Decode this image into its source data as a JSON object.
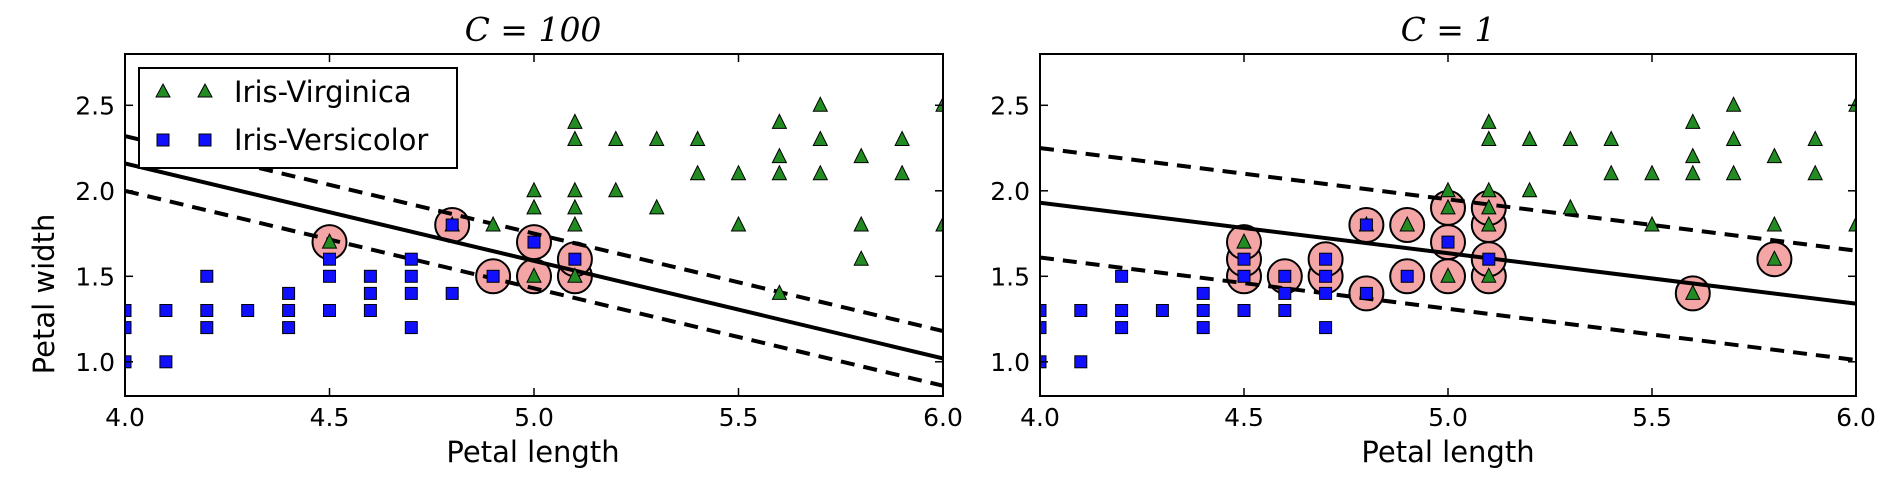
{
  "chart_data": [
    {
      "type": "scatter",
      "title": "C = 100",
      "xlabel": "Petal length",
      "ylabel": "Petal width",
      "xlim": [
        4.0,
        6.0
      ],
      "ylim": [
        0.8,
        2.8
      ],
      "xticks": [
        "4.0",
        "4.5",
        "5.0",
        "5.5",
        "6.0"
      ],
      "yticks": [
        "1.0",
        "1.5",
        "2.0",
        "2.5"
      ],
      "legend": {
        "position": "top-left",
        "entries": [
          {
            "label": "Iris-Virginica",
            "marker": "triangle",
            "color": "#228b22"
          },
          {
            "label": "Iris-Versicolor",
            "marker": "square",
            "color": "#1010ff"
          }
        ]
      },
      "series": [
        {
          "name": "Iris-Virginica",
          "marker": "triangle",
          "color": "#228b22",
          "points": [
            [
              4.5,
              1.7
            ],
            [
              4.8,
              1.8
            ],
            [
              4.9,
              1.8
            ],
            [
              5.0,
              1.5
            ],
            [
              5.0,
              2.0
            ],
            [
              5.0,
              1.9
            ],
            [
              5.1,
              1.8
            ],
            [
              5.1,
              1.9
            ],
            [
              5.1,
              2.0
            ],
            [
              5.1,
              2.3
            ],
            [
              5.1,
              2.4
            ],
            [
              5.1,
              1.5
            ],
            [
              5.2,
              2.0
            ],
            [
              5.2,
              2.3
            ],
            [
              5.3,
              1.9
            ],
            [
              5.3,
              2.3
            ],
            [
              5.4,
              2.1
            ],
            [
              5.4,
              2.3
            ],
            [
              5.5,
              1.8
            ],
            [
              5.5,
              2.1
            ],
            [
              5.6,
              1.4
            ],
            [
              5.6,
              2.1
            ],
            [
              5.6,
              2.2
            ],
            [
              5.6,
              2.4
            ],
            [
              5.7,
              2.1
            ],
            [
              5.7,
              2.3
            ],
            [
              5.7,
              2.5
            ],
            [
              5.8,
              1.6
            ],
            [
              5.8,
              1.8
            ],
            [
              5.8,
              2.2
            ],
            [
              5.9,
              2.1
            ],
            [
              5.9,
              2.3
            ],
            [
              6.0,
              1.8
            ],
            [
              6.0,
              2.5
            ]
          ]
        },
        {
          "name": "Iris-Versicolor",
          "marker": "square",
          "color": "#1010ff",
          "points": [
            [
              4.0,
              1.0
            ],
            [
              4.0,
              1.2
            ],
            [
              4.0,
              1.3
            ],
            [
              4.1,
              1.0
            ],
            [
              4.1,
              1.3
            ],
            [
              4.2,
              1.2
            ],
            [
              4.2,
              1.3
            ],
            [
              4.2,
              1.5
            ],
            [
              4.3,
              1.3
            ],
            [
              4.4,
              1.2
            ],
            [
              4.4,
              1.3
            ],
            [
              4.4,
              1.4
            ],
            [
              4.5,
              1.3
            ],
            [
              4.5,
              1.5
            ],
            [
              4.5,
              1.6
            ],
            [
              4.6,
              1.3
            ],
            [
              4.6,
              1.4
            ],
            [
              4.6,
              1.5
            ],
            [
              4.7,
              1.2
            ],
            [
              4.7,
              1.4
            ],
            [
              4.7,
              1.5
            ],
            [
              4.7,
              1.6
            ],
            [
              4.8,
              1.4
            ],
            [
              4.8,
              1.8
            ],
            [
              4.9,
              1.5
            ],
            [
              5.0,
              1.7
            ],
            [
              5.1,
              1.6
            ]
          ]
        }
      ],
      "support_vectors": [
        [
          4.5,
          1.7
        ],
        [
          4.8,
          1.8
        ],
        [
          4.9,
          1.5
        ],
        [
          5.0,
          1.5
        ],
        [
          5.0,
          1.7
        ],
        [
          5.1,
          1.5
        ],
        [
          5.1,
          1.6
        ]
      ],
      "decision_boundary": [
        [
          4.0,
          2.16
        ],
        [
          6.0,
          1.02
        ]
      ],
      "margin_upper": [
        [
          4.0,
          2.32
        ],
        [
          6.0,
          1.18
        ]
      ],
      "margin_lower": [
        [
          4.0,
          2.0
        ],
        [
          6.0,
          0.86
        ]
      ],
      "grid": false
    },
    {
      "type": "scatter",
      "title": "C = 1",
      "xlabel": "Petal length",
      "ylabel": "",
      "xlim": [
        4.0,
        6.0
      ],
      "ylim": [
        0.8,
        2.8
      ],
      "xticks": [
        "4.0",
        "4.5",
        "5.0",
        "5.5",
        "6.0"
      ],
      "yticks": [
        "1.0",
        "1.5",
        "2.0",
        "2.5"
      ],
      "series": [
        {
          "name": "Iris-Virginica",
          "marker": "triangle",
          "color": "#228b22",
          "points": [
            [
              4.5,
              1.7
            ],
            [
              4.8,
              1.8
            ],
            [
              4.9,
              1.8
            ],
            [
              5.0,
              1.5
            ],
            [
              5.0,
              2.0
            ],
            [
              5.0,
              1.9
            ],
            [
              5.1,
              1.8
            ],
            [
              5.1,
              1.9
            ],
            [
              5.1,
              2.0
            ],
            [
              5.1,
              2.3
            ],
            [
              5.1,
              2.4
            ],
            [
              5.1,
              1.5
            ],
            [
              5.2,
              2.0
            ],
            [
              5.2,
              2.3
            ],
            [
              5.3,
              1.9
            ],
            [
              5.3,
              2.3
            ],
            [
              5.4,
              2.1
            ],
            [
              5.4,
              2.3
            ],
            [
              5.5,
              1.8
            ],
            [
              5.5,
              2.1
            ],
            [
              5.6,
              1.4
            ],
            [
              5.6,
              2.1
            ],
            [
              5.6,
              2.2
            ],
            [
              5.6,
              2.4
            ],
            [
              5.7,
              2.1
            ],
            [
              5.7,
              2.3
            ],
            [
              5.7,
              2.5
            ],
            [
              5.8,
              1.6
            ],
            [
              5.8,
              1.8
            ],
            [
              5.8,
              2.2
            ],
            [
              5.9,
              2.1
            ],
            [
              5.9,
              2.3
            ],
            [
              6.0,
              1.8
            ],
            [
              6.0,
              2.5
            ]
          ]
        },
        {
          "name": "Iris-Versicolor",
          "marker": "square",
          "color": "#1010ff",
          "points": [
            [
              4.0,
              1.0
            ],
            [
              4.0,
              1.2
            ],
            [
              4.0,
              1.3
            ],
            [
              4.1,
              1.0
            ],
            [
              4.1,
              1.3
            ],
            [
              4.2,
              1.2
            ],
            [
              4.2,
              1.3
            ],
            [
              4.2,
              1.5
            ],
            [
              4.3,
              1.3
            ],
            [
              4.4,
              1.2
            ],
            [
              4.4,
              1.3
            ],
            [
              4.4,
              1.4
            ],
            [
              4.5,
              1.3
            ],
            [
              4.5,
              1.5
            ],
            [
              4.5,
              1.6
            ],
            [
              4.6,
              1.3
            ],
            [
              4.6,
              1.4
            ],
            [
              4.6,
              1.5
            ],
            [
              4.7,
              1.2
            ],
            [
              4.7,
              1.4
            ],
            [
              4.7,
              1.5
            ],
            [
              4.7,
              1.6
            ],
            [
              4.8,
              1.4
            ],
            [
              4.8,
              1.8
            ],
            [
              4.9,
              1.5
            ],
            [
              5.0,
              1.7
            ],
            [
              5.1,
              1.6
            ]
          ]
        }
      ],
      "support_vectors": [
        [
          4.5,
          1.5
        ],
        [
          4.5,
          1.6
        ],
        [
          4.5,
          1.7
        ],
        [
          4.6,
          1.5
        ],
        [
          4.7,
          1.5
        ],
        [
          4.7,
          1.6
        ],
        [
          4.8,
          1.4
        ],
        [
          4.8,
          1.8
        ],
        [
          4.9,
          1.5
        ],
        [
          4.9,
          1.8
        ],
        [
          5.0,
          1.5
        ],
        [
          5.0,
          1.7
        ],
        [
          5.0,
          1.9
        ],
        [
          5.1,
          1.5
        ],
        [
          5.1,
          1.6
        ],
        [
          5.1,
          1.8
        ],
        [
          5.1,
          1.9
        ],
        [
          5.6,
          1.4
        ],
        [
          5.8,
          1.6
        ]
      ],
      "decision_boundary": [
        [
          4.0,
          1.93
        ],
        [
          6.0,
          1.34
        ]
      ],
      "margin_upper": [
        [
          4.0,
          2.25
        ],
        [
          6.0,
          1.65
        ]
      ],
      "margin_lower": [
        [
          4.0,
          1.61
        ],
        [
          6.0,
          1.01
        ]
      ],
      "grid": false
    }
  ],
  "colors": {
    "virginica": "#228b22",
    "versicolor": "#1010ff",
    "support_vector_fill": "#f4a6a6"
  }
}
